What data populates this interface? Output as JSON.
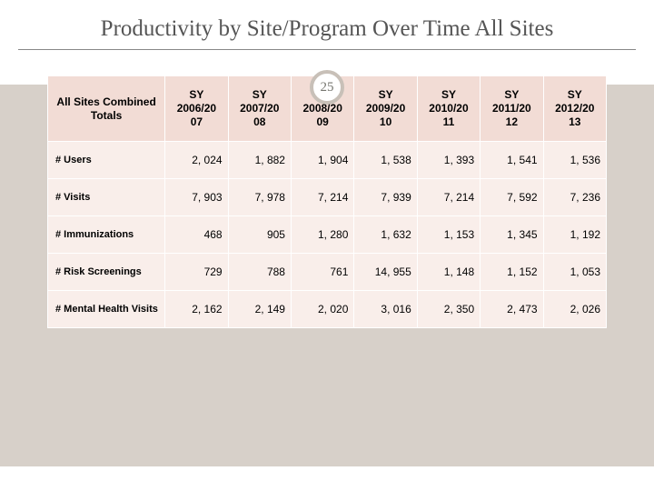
{
  "title": "Productivity by Site/Program Over Time All Sites",
  "slide_number": "25",
  "colors": {
    "header_bg": "#f2dcd5",
    "cell_bg": "#f9eeea",
    "band_bg": "#d7d0c9",
    "badge_border": "#c8c0b8",
    "title_color": "#555555"
  },
  "table": {
    "corner_label": "All Sites Combined Totals",
    "columns": [
      "SY 2006/20 07",
      "SY 2007/20 08",
      "SY 2008/20 09",
      "SY 2009/20 10",
      "SY 2010/20 11",
      "SY 2011/20 12",
      "SY 2012/20 13"
    ],
    "rows": [
      {
        "label": "# Users",
        "values": [
          "2, 024",
          "1, 882",
          "1, 904",
          "1, 538",
          "1, 393",
          "1, 541",
          "1, 536"
        ]
      },
      {
        "label": "# Visits",
        "values": [
          "7, 903",
          "7, 978",
          "7, 214",
          "7, 939",
          "7, 214",
          "7, 592",
          "7, 236"
        ]
      },
      {
        "label": "# Immunizations",
        "values": [
          "468",
          "905",
          "1, 280",
          "1, 632",
          "1, 153",
          "1, 345",
          "1, 192"
        ]
      },
      {
        "label": "# Risk Screenings",
        "values": [
          "729",
          "788",
          "761",
          "14, 955",
          "1, 148",
          "1, 152",
          "1, 053"
        ]
      },
      {
        "label": "# Mental Health Visits",
        "values": [
          "2, 162",
          "2, 149",
          "2, 020",
          "3, 016",
          "2, 350",
          "2, 473",
          "2, 026"
        ]
      }
    ]
  }
}
